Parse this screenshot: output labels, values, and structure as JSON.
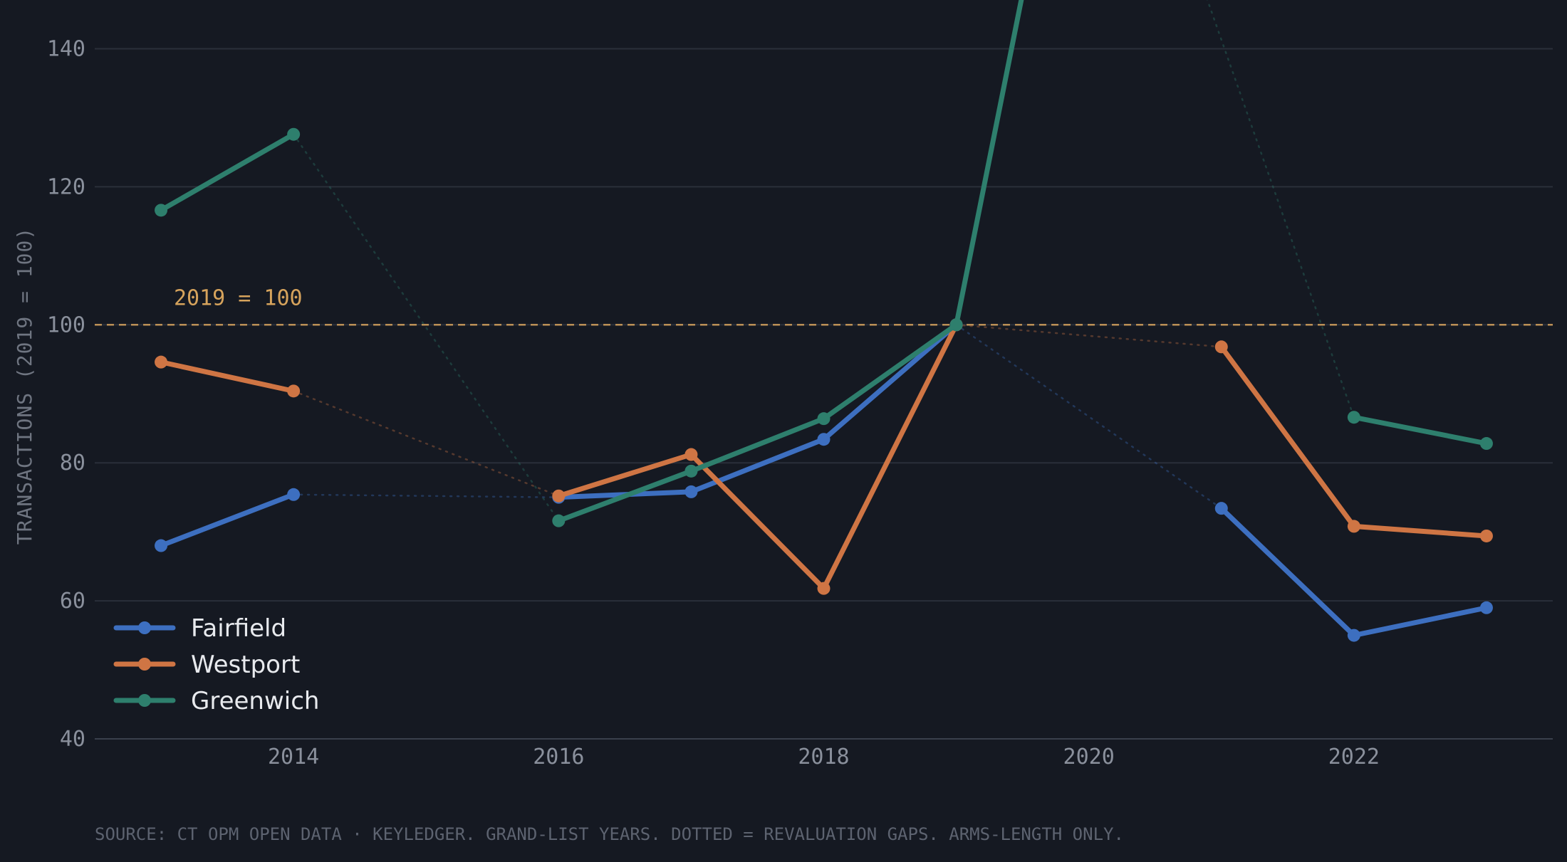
{
  "chart_data": {
    "type": "line",
    "title": "",
    "xlabel": "",
    "ylabel": "TRANSACTIONS (2019 = 100)",
    "xlim": [
      2012.5,
      2023.5
    ],
    "ylim": [
      40,
      145
    ],
    "x_ticks": [
      2014,
      2016,
      2018,
      2020,
      2022
    ],
    "x_tick_labels": [
      "2014",
      "2016",
      "2018",
      "2020",
      "2022"
    ],
    "y_ticks": [
      40,
      60,
      80,
      100,
      120,
      140
    ],
    "y_tick_labels": [
      "40",
      "60",
      "80",
      "100",
      "120",
      "140"
    ],
    "grid": true,
    "legend_position": "bottom-left",
    "reference_line": {
      "y": 100,
      "label": "2019 = 100",
      "color": "#d6a35c",
      "style": "dashed"
    },
    "note": "SOURCE: CT OPM OPEN DATA · KEYLEDGER. GRAND-LIST YEARS. DOTTED = REVALUATION GAPS. ARMS-LENGTH ONLY.",
    "series": [
      {
        "name": "Fairfield",
        "color": "#3d6fc0",
        "segments": [
          [
            [
              2013,
              68
            ],
            [
              2014,
              75.4
            ]
          ],
          [
            [
              2016,
              75
            ],
            [
              2017,
              75.8
            ],
            [
              2018,
              83.4
            ],
            [
              2019,
              100
            ]
          ],
          [
            [
              2021,
              73.4
            ],
            [
              2022,
              55
            ],
            [
              2023,
              59
            ]
          ]
        ]
      },
      {
        "name": "Westport",
        "color": "#cf7544",
        "segments": [
          [
            [
              2013,
              94.6
            ],
            [
              2014,
              90.4
            ]
          ],
          [
            [
              2016,
              75.2
            ],
            [
              2017,
              81.2
            ],
            [
              2018,
              61.8
            ],
            [
              2019,
              100
            ]
          ],
          [
            [
              2021,
              96.8
            ],
            [
              2022,
              70.8
            ],
            [
              2023,
              69.4
            ]
          ]
        ]
      },
      {
        "name": "Greenwich",
        "color": "#2e7f6d",
        "segments": [
          [
            [
              2013,
              116.6
            ],
            [
              2014,
              127.6
            ]
          ],
          [
            [
              2016,
              71.6
            ],
            [
              2017,
              78.8
            ],
            [
              2018,
              86.4
            ],
            [
              2019,
              100
            ],
            [
              2020,
              196
            ]
          ],
          [
            [
              2022,
              86.6
            ],
            [
              2023,
              82.8
            ]
          ]
        ]
      }
    ],
    "gap_connectors": [
      {
        "series": "Fairfield",
        "points": [
          [
            2014,
            75.4
          ],
          [
            2016,
            75
          ]
        ]
      },
      {
        "series": "Fairfield",
        "points": [
          [
            2019,
            100
          ],
          [
            2021,
            73.4
          ]
        ]
      },
      {
        "series": "Westport",
        "points": [
          [
            2014,
            90.4
          ],
          [
            2016,
            75.2
          ]
        ]
      },
      {
        "series": "Westport",
        "points": [
          [
            2019,
            100
          ],
          [
            2021,
            96.8
          ]
        ]
      },
      {
        "series": "Greenwich",
        "points": [
          [
            2014,
            127.6
          ],
          [
            2016,
            71.6
          ]
        ]
      },
      {
        "series": "Greenwich",
        "points": [
          [
            2020,
            196
          ],
          [
            2022,
            86.6
          ]
        ]
      }
    ]
  },
  "colors": {
    "background": "#151922",
    "grid": "#2a2f3a",
    "axis": "#3a404c",
    "gap_line": "#4a4f5a"
  }
}
